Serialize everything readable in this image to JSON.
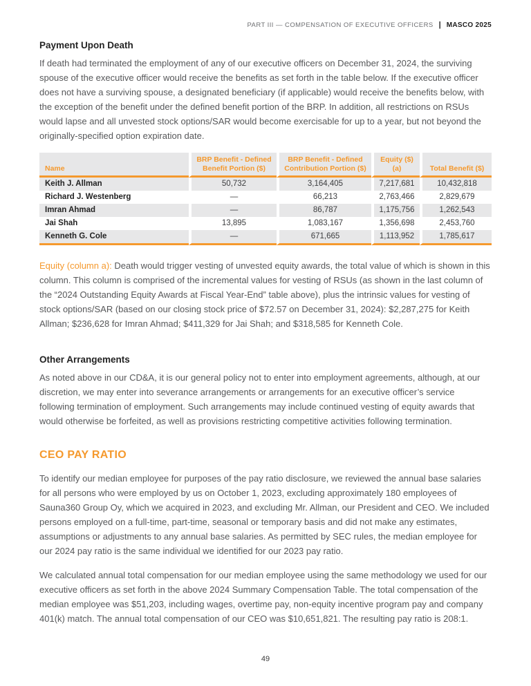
{
  "header": {
    "section": "PART III — COMPENSATION OF EXECUTIVE OFFICERS",
    "divider": "|",
    "brand": "MASCO 2025"
  },
  "payment_upon_death": {
    "title": "Payment Upon Death",
    "body": "If death had terminated the employment of any of our executive officers on December 31, 2024, the surviving spouse of the executive officer would receive the benefits as set forth in the table below. If the executive officer does not have a surviving spouse, a designated beneficiary (if applicable) would receive the benefits below, with the exception of the benefit under the defined benefit portion of the BRP. In addition, all restrictions on RSUs would lapse and all unvested stock options/SAR would become exercisable for up to a year, but not beyond the originally-specified option expiration date."
  },
  "benefits_table": {
    "columns": [
      "Name",
      "BRP Benefit - Defined\nBenefit Portion ($)",
      "BRP Benefit - Defined\nContribution Portion ($)",
      "Equity ($)\n(a)",
      "Total Benefit ($)"
    ],
    "rows": [
      {
        "name": "Keith J. Allman",
        "brp_db": "50,732",
        "brp_dc": "3,164,405",
        "equity": "7,217,681",
        "total": "10,432,818"
      },
      {
        "name": "Richard J. Westenberg",
        "brp_db": "—",
        "brp_dc": "66,213",
        "equity": "2,763,466",
        "total": "2,829,679"
      },
      {
        "name": "Imran Ahmad",
        "brp_db": "—",
        "brp_dc": "86,787",
        "equity": "1,175,756",
        "total": "1,262,543"
      },
      {
        "name": "Jai Shah",
        "brp_db": "13,895",
        "brp_dc": "1,083,167",
        "equity": "1,356,698",
        "total": "2,453,760"
      },
      {
        "name": "Kenneth G. Cole",
        "brp_db": "—",
        "brp_dc": "671,665",
        "equity": "1,113,952",
        "total": "1,785,617"
      }
    ]
  },
  "footnote": {
    "lead": "Equity (column a):",
    "body": " Death would trigger vesting of unvested equity awards, the total value of which is shown in this column. This column is comprised of the incremental values for vesting of RSUs (as shown in the last column of the “2024 Outstanding Equity Awards at Fiscal Year-End” table above), plus the intrinsic values for vesting of stock options/SAR (based on our closing stock price of $72.57 on December 31, 2024): $2,287,275 for Keith Allman; $236,628 for Imran Ahmad; $411,329 for Jai Shah; and $318,585 for Kenneth Cole."
  },
  "other_arrangements": {
    "title": "Other Arrangements",
    "body": "As noted above in our CD&A, it is our general policy not to enter into employment agreements, although, at our discretion, we may enter into severance arrangements or arrangements for an executive officer’s service following termination of employment. Such arrangements may include continued vesting of equity awards that would otherwise be forfeited, as well as provisions restricting competitive activities following termination."
  },
  "ceo_pay_ratio": {
    "title": "CEO PAY RATIO",
    "paragraph1": "To identify our median employee for purposes of the pay ratio disclosure, we reviewed the annual base salaries for all persons who were employed by us on October 1, 2023, excluding approximately 180 employees of Sauna360 Group Oy, which we acquired in 2023, and excluding Mr. Allman, our President and CEO. We included persons employed on a full-time, part-time, seasonal or temporary basis and did not make any estimates, assumptions or adjustments to any annual base salaries. As permitted by SEC rules, the median employee for our 2024 pay ratio is the same individual we identified for our 2023 pay ratio.",
    "paragraph2": "We calculated annual total compensation for our median employee using the same methodology we used for our executive officers as set forth in the above 2024 Summary Compensation Table. The total compensation of the median employee was $51,203, including wages, overtime pay, non-equity incentive program pay and company 401(k) match. The annual total compensation of our CEO was $10,651,821. The resulting pay ratio is 208:1.",
    "accent_color": "#F5992D"
  },
  "footer": {
    "page_number": "49"
  }
}
